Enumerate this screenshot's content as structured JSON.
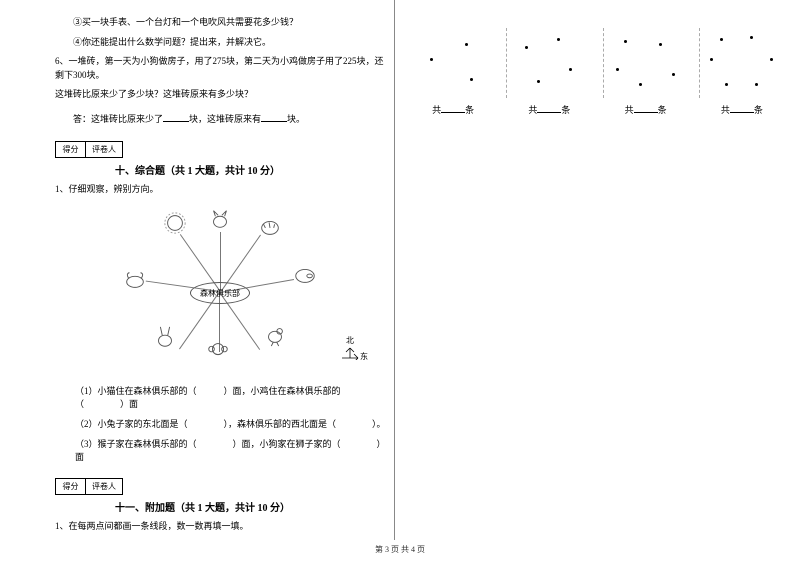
{
  "left": {
    "q3": "③买一块手表、一个台灯和一个电吹风共需要花多少钱？",
    "q4": "④你还能提出什么数学问题？提出来，并解决它。",
    "q6a": "6、一堆砖，第一天为小狗做房子，用了275块，第二天为小鸡做房子用了225块，还剩下300块。",
    "q6b": "这堆砖比原来少了多少块？这堆砖原来有多少块？",
    "answer_prefix": "答：这堆砖比原来少了",
    "answer_mid": "块，这堆砖原来有",
    "answer_end": "块。",
    "score_label1": "得分",
    "score_label2": "评卷人",
    "section10": "十、综合题（共 1 大题，共计 10 分）",
    "sub1": "1、仔细观察，辨别方向。",
    "club": "森林俱乐部",
    "compass_n": "北",
    "compass_e": "东",
    "fill1": "（1）小猫住在森林俱乐部的（　　　）面，小鸡住在森林俱乐部的（　　　　）面",
    "fill2": "（2）小兔子家的东北面是（　　　　），森林俱乐部的西北面是（　　　　）。",
    "fill3": "（3）猴子家在森林俱乐部的（　　　　）面，小狗家在狮子家的（　　　　）面",
    "section11": "十一、附加题（共 1 大题，共计 10 分）",
    "sub11": "1、在每两点间都画一条线段，数一数再填一填。"
  },
  "right": {
    "label_prefix": "共",
    "label_suffix": "条",
    "groups": [
      {
        "dots": [
          [
            20,
            30
          ],
          [
            55,
            15
          ],
          [
            60,
            50
          ]
        ]
      },
      {
        "dots": [
          [
            18,
            18
          ],
          [
            50,
            10
          ],
          [
            62,
            40
          ],
          [
            30,
            52
          ]
        ]
      },
      {
        "dots": [
          [
            20,
            12
          ],
          [
            55,
            15
          ],
          [
            68,
            45
          ],
          [
            35,
            55
          ],
          [
            12,
            40
          ]
        ]
      },
      {
        "dots": [
          [
            20,
            10
          ],
          [
            50,
            8
          ],
          [
            70,
            30
          ],
          [
            55,
            55
          ],
          [
            25,
            55
          ],
          [
            10,
            30
          ]
        ]
      }
    ]
  },
  "footer": "第 3 页 共 4 页",
  "colors": {
    "text": "#000000",
    "bg": "#ffffff",
    "line": "#888888"
  }
}
